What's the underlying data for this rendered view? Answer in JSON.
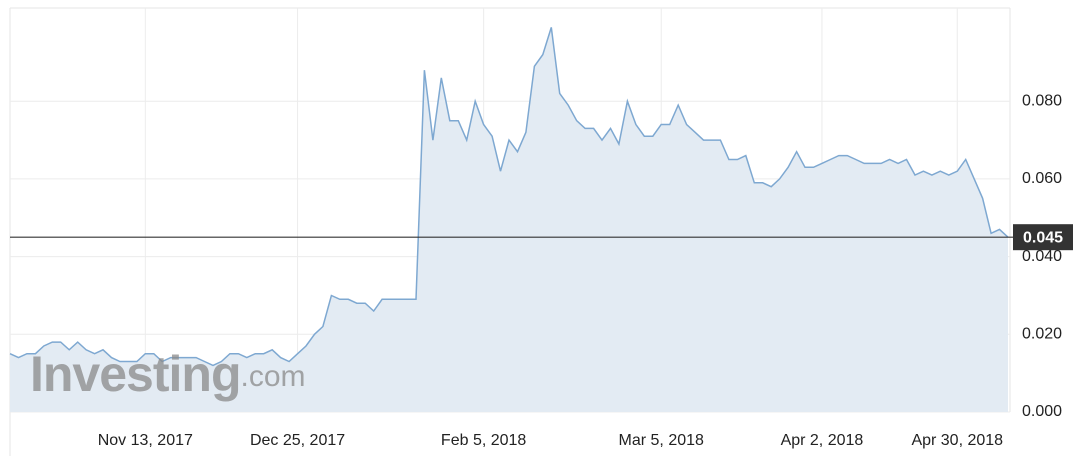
{
  "chart_data": {
    "type": "area",
    "watermark": {
      "brand": "Investing",
      "suffix": ".com"
    },
    "categories": [
      null,
      null,
      null,
      null,
      null,
      null,
      null,
      null,
      null,
      null,
      null,
      null,
      null,
      null,
      null,
      null,
      "Nov 13, 2017",
      null,
      null,
      null,
      null,
      null,
      null,
      null,
      null,
      null,
      null,
      null,
      null,
      null,
      null,
      null,
      null,
      null,
      "Dec 25, 2017",
      null,
      null,
      null,
      null,
      null,
      null,
      null,
      null,
      null,
      null,
      null,
      null,
      null,
      null,
      null,
      null,
      null,
      null,
      null,
      null,
      null,
      "Feb 5, 2018",
      null,
      null,
      null,
      null,
      null,
      null,
      null,
      null,
      null,
      null,
      null,
      null,
      null,
      null,
      null,
      null,
      null,
      null,
      null,
      null,
      "Mar 5, 2018",
      null,
      null,
      null,
      null,
      null,
      null,
      null,
      null,
      null,
      null,
      null,
      null,
      null,
      null,
      null,
      null,
      null,
      null,
      "Apr 2, 2018",
      null,
      null,
      null,
      null,
      null,
      null,
      null,
      null,
      null,
      null,
      null,
      null,
      null,
      null,
      null,
      "Apr 30, 2018",
      null,
      null,
      null,
      null,
      null,
      null
    ],
    "values": [
      0.015,
      0.014,
      0.015,
      0.015,
      0.017,
      0.018,
      0.018,
      0.016,
      0.018,
      0.016,
      0.015,
      0.016,
      0.014,
      0.013,
      0.013,
      0.013,
      0.015,
      0.015,
      0.013,
      0.014,
      0.014,
      0.014,
      0.014,
      0.013,
      0.012,
      0.013,
      0.015,
      0.015,
      0.014,
      0.015,
      0.015,
      0.016,
      0.014,
      0.013,
      0.015,
      0.017,
      0.02,
      0.022,
      0.03,
      0.029,
      0.029,
      0.028,
      0.028,
      0.026,
      0.029,
      0.029,
      0.029,
      0.029,
      0.029,
      0.088,
      0.07,
      0.086,
      0.075,
      0.075,
      0.07,
      0.08,
      0.074,
      0.071,
      0.062,
      0.07,
      0.067,
      0.072,
      0.089,
      0.092,
      0.099,
      0.082,
      0.079,
      0.075,
      0.073,
      0.073,
      0.07,
      0.073,
      0.069,
      0.08,
      0.074,
      0.071,
      0.071,
      0.074,
      0.074,
      0.079,
      0.074,
      0.072,
      0.07,
      0.07,
      0.07,
      0.065,
      0.065,
      0.066,
      0.059,
      0.059,
      0.058,
      0.06,
      0.063,
      0.067,
      0.063,
      0.063,
      0.064,
      0.065,
      0.066,
      0.066,
      0.065,
      0.064,
      0.064,
      0.064,
      0.065,
      0.064,
      0.065,
      0.061,
      0.062,
      0.061,
      0.062,
      0.061,
      0.062,
      0.065,
      0.06,
      0.055,
      0.046,
      0.047,
      0.045
    ],
    "color": "#7ea8d1",
    "fill": "#e3ebf3",
    "ylim": [
      0,
      0.104
    ],
    "yticks": [
      {
        "value": 0,
        "label": "0.000"
      },
      {
        "value": 0.02,
        "label": "0.020"
      },
      {
        "value": 0.04,
        "label": "0.040"
      },
      {
        "value": 0.06,
        "label": "0.060"
      },
      {
        "value": 0.08,
        "label": "0.080"
      }
    ],
    "grid": true
  }
}
